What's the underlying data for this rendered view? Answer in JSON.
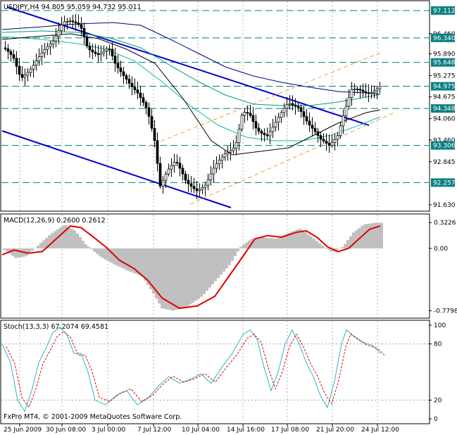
{
  "window": {
    "symbol_header": "USDJPY,H4  94.805 95.059 94.732 95.011",
    "footer": "FxPro MT4, © 2001-2009 MetaQuotes Software Corp."
  },
  "main_panel": {
    "price_axis": [
      "96.460",
      "95.890",
      "95.275",
      "94.675",
      "94.060",
      "93.460",
      "92.845",
      "91.630"
    ],
    "level_tags": [
      {
        "value": "97.112",
        "price": 97.112
      },
      {
        "value": "96.340",
        "price": 96.34
      },
      {
        "value": "95.648",
        "price": 95.648
      },
      {
        "value": "94.975",
        "price": 94.975
      },
      {
        "value": "94.348",
        "price": 94.348
      },
      {
        "value": "93.306",
        "price": 93.306
      },
      {
        "value": "92.257",
        "price": 92.257
      }
    ],
    "price_range": [
      91.53,
      97.25
    ],
    "colors": {
      "trend_line": "#0000cc",
      "channel": "#f0a040",
      "level_line": "#008080",
      "tag_bg": "#0d7f7f"
    }
  },
  "macd_panel": {
    "label": "MACD(12,26,9) 0.2600 0.2612",
    "axis": [
      "0.3226",
      "0.00",
      "-0.7798"
    ],
    "range": [
      -0.82,
      0.36
    ],
    "signal_color": "#e00000",
    "histogram_color": "#c0c0c0"
  },
  "stoch_panel": {
    "label": "Stoch(13,3,3) 67.2074 69.4581",
    "axis": [
      "100",
      "80",
      "20",
      "0"
    ],
    "main_color": "#2bb7c2",
    "signal_color": "#e00000"
  },
  "time_axis": [
    "25 Jun 2009",
    "30 Jun 08:00",
    "3 Jul 00:00",
    "7 Jul 12:00",
    "10 Jul 04:00",
    "14 Jul 16:00",
    "17 Jul 08:00",
    "21 Jul 20:00",
    "24 Jul 12:00"
  ]
}
